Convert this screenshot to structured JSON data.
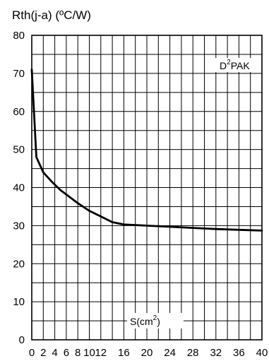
{
  "chart_data": {
    "type": "line",
    "title": "",
    "ylabel": "Rth(j-a) (ºC/W)",
    "xlabel_main": "S(cm",
    "xlabel_sup": "2",
    "xlabel_tail": ")",
    "package_main": "D",
    "package_sup": "2",
    "package_tail": "PAK",
    "xlim": [
      0,
      40
    ],
    "ylim": [
      0,
      80
    ],
    "x_ticks": [
      0,
      2,
      4,
      6,
      8,
      10,
      12,
      16,
      20,
      24,
      28,
      32,
      36,
      40
    ],
    "y_ticks": [
      0,
      10,
      20,
      30,
      40,
      50,
      60,
      70,
      80
    ],
    "minor_x_step": 2,
    "minor_y_step": 5,
    "grid": true,
    "series": [
      {
        "x": [
          0,
          0.8,
          2,
          3.5,
          5,
          6.5,
          8,
          10,
          12,
          14,
          16,
          20,
          24,
          28,
          32,
          36,
          40
        ],
        "y": [
          71,
          48,
          44,
          41.5,
          39.3,
          37.6,
          35.9,
          33.9,
          32.4,
          30.9,
          30.3,
          30.0,
          29.7,
          29.4,
          29.1,
          28.9,
          28.7
        ]
      }
    ]
  }
}
